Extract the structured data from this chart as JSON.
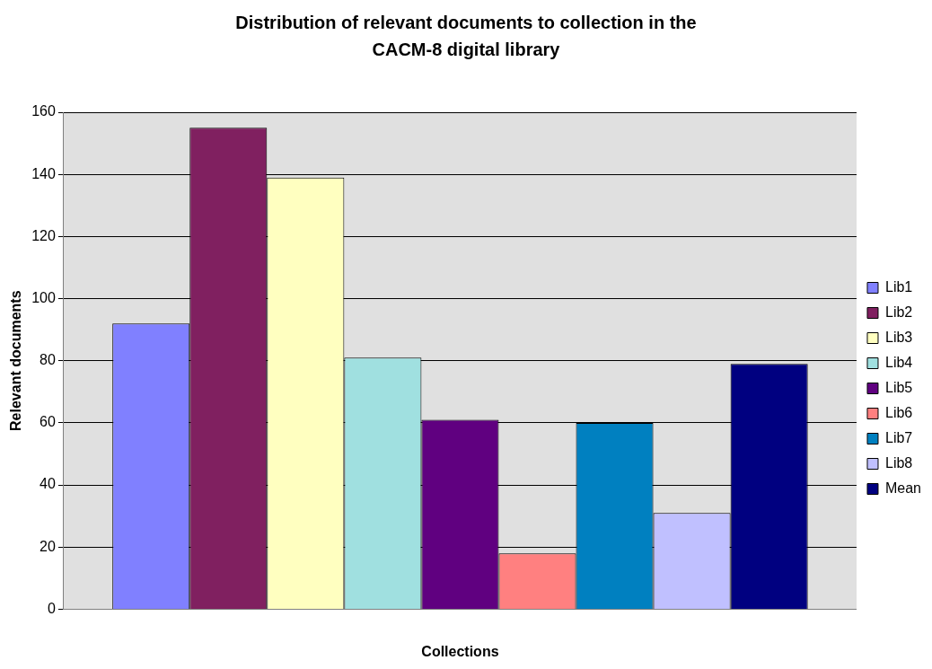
{
  "chart_data": {
    "type": "bar",
    "title": "Distribution of relevant documents to collection in the CACM-8 digital library",
    "xlabel": "Collections",
    "ylabel": "Relevant documents",
    "categories": [
      null
    ],
    "series": [
      {
        "name": "Lib1",
        "color": "#8080ff",
        "values": [
          92
        ]
      },
      {
        "name": "Lib2",
        "color": "#802060",
        "values": [
          155
        ]
      },
      {
        "name": "Lib3",
        "color": "#ffffc0",
        "values": [
          139
        ]
      },
      {
        "name": "Lib4",
        "color": "#a0e0e0",
        "values": [
          81
        ]
      },
      {
        "name": "Lib5",
        "color": "#600080",
        "values": [
          61
        ]
      },
      {
        "name": "Lib6",
        "color": "#ff8080",
        "values": [
          18
        ]
      },
      {
        "name": "Lib7",
        "color": "#0080c0",
        "values": [
          60
        ]
      },
      {
        "name": "Lib8",
        "color": "#c0c0ff",
        "values": [
          31
        ]
      },
      {
        "name": "Mean",
        "color": "#000080",
        "values": [
          79
        ]
      }
    ],
    "ylim": [
      0,
      160
    ],
    "yticks": [
      0,
      20,
      40,
      60,
      80,
      100,
      120,
      140,
      160
    ],
    "grid": "y",
    "legend": "right"
  }
}
